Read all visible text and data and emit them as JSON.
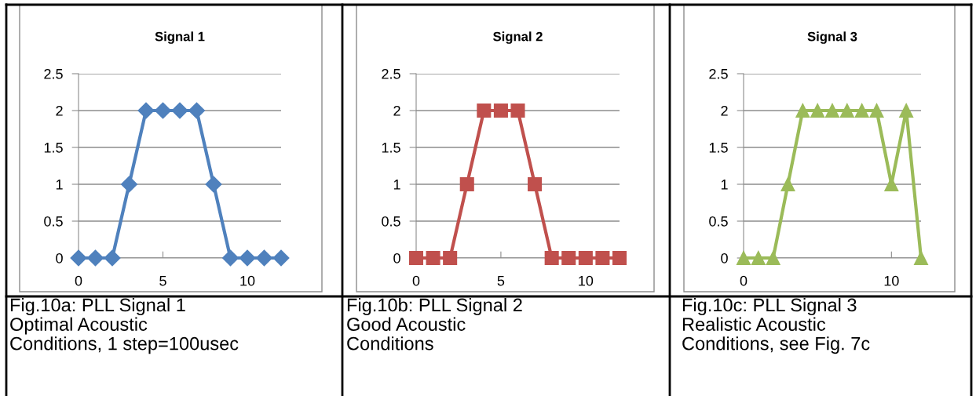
{
  "chart_data": [
    {
      "type": "line",
      "title": "Signal 1",
      "x": [
        0,
        1,
        2,
        3,
        4,
        5,
        6,
        7,
        8,
        9,
        10,
        11,
        12
      ],
      "marker": "diamond",
      "line_style": "solid",
      "grid": "y",
      "series": [
        {
          "color": "#4f81bd",
          "values": [
            0,
            0,
            0,
            1,
            2,
            2,
            2,
            2,
            1,
            0,
            0,
            0,
            0
          ]
        }
      ],
      "xlim": [
        0,
        12
      ],
      "xticks": [
        0,
        5,
        10
      ],
      "ylim": [
        0,
        2.5
      ],
      "yticks": [
        0,
        0.5,
        1,
        1.5,
        2,
        2.5
      ],
      "annotations": [
        "Fig.10a: PLL Signal 1\nOptimal Acoustic\nConditions, 1 step=100usec"
      ]
    },
    {
      "type": "line",
      "title": "Signal 2",
      "x": [
        0,
        1,
        2,
        3,
        4,
        5,
        6,
        7,
        8,
        9,
        10,
        11,
        12
      ],
      "marker": "square",
      "line_style": "solid",
      "grid": "y",
      "series": [
        {
          "color": "#c0504d",
          "values": [
            0,
            0,
            0,
            1,
            2,
            2,
            2,
            1,
            0,
            0,
            0,
            0,
            0
          ]
        }
      ],
      "xlim": [
        0,
        12
      ],
      "xticks": [
        0,
        5,
        10
      ],
      "ylim": [
        0,
        2.5
      ],
      "yticks": [
        0,
        0.5,
        1,
        1.5,
        2,
        2.5
      ],
      "annotations": [
        "Fig.10b: PLL Signal 2\nGood Acoustic\nConditions"
      ]
    },
    {
      "type": "line",
      "title": "Signal 3",
      "x": [
        0,
        1,
        2,
        3,
        4,
        5,
        6,
        7,
        8,
        9,
        10,
        11,
        12
      ],
      "marker": "triangle",
      "line_style": "solid",
      "grid": "y",
      "series": [
        {
          "color": "#9bbb59",
          "values": [
            0,
            0,
            0,
            1,
            2,
            2,
            2,
            2,
            2,
            2,
            1,
            2,
            0
          ]
        }
      ],
      "xlim": [
        0,
        12
      ],
      "xticks": [
        0,
        10
      ],
      "ylim": [
        0,
        2.5
      ],
      "yticks": [
        0,
        0.5,
        1,
        1.5,
        2,
        2.5
      ],
      "annotations": [
        "Fig.10c: PLL Signal 3\nRealistic Acoustic\nConditions, see Fig. 7c"
      ]
    }
  ]
}
